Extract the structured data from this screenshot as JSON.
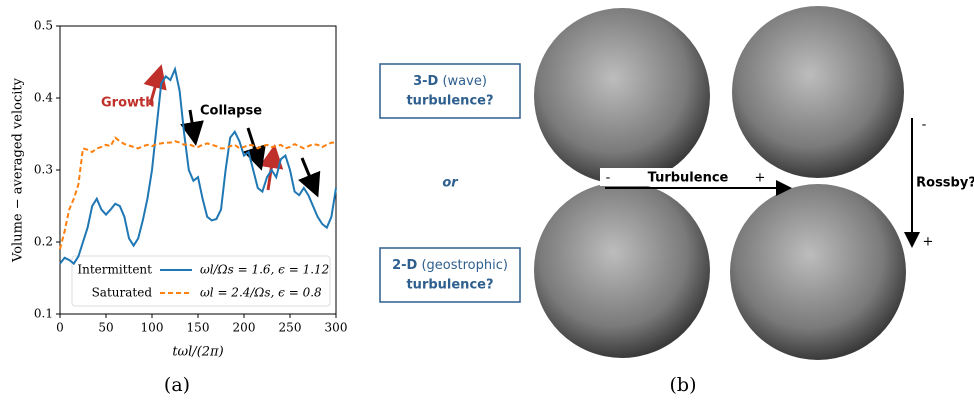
{
  "chart_data": {
    "type": "line",
    "x_label": "tωl/(2π)",
    "y_label": "Volume − averaged velocity",
    "x": [
      0,
      5,
      10,
      15,
      20,
      25,
      30,
      35,
      40,
      45,
      50,
      55,
      60,
      65,
      70,
      75,
      80,
      85,
      90,
      95,
      100,
      105,
      110,
      115,
      120,
      125,
      130,
      135,
      140,
      145,
      150,
      155,
      160,
      165,
      170,
      175,
      180,
      185,
      190,
      195,
      200,
      205,
      210,
      215,
      220,
      225,
      230,
      235,
      240,
      245,
      250,
      255,
      260,
      265,
      270,
      275,
      280,
      285,
      290,
      295,
      300
    ],
    "series": [
      {
        "name": "Intermittent",
        "label": "ωl/Ωs = 1.6, ϵ = 1.12",
        "color": "#1f77b4",
        "dash": "none",
        "values": [
          0.17,
          0.178,
          0.175,
          0.17,
          0.18,
          0.2,
          0.22,
          0.25,
          0.26,
          0.245,
          0.238,
          0.245,
          0.253,
          0.25,
          0.235,
          0.205,
          0.195,
          0.205,
          0.23,
          0.26,
          0.3,
          0.36,
          0.42,
          0.43,
          0.425,
          0.44,
          0.41,
          0.35,
          0.3,
          0.285,
          0.29,
          0.26,
          0.235,
          0.23,
          0.232,
          0.245,
          0.3,
          0.345,
          0.353,
          0.34,
          0.32,
          0.325,
          0.3,
          0.275,
          0.27,
          0.29,
          0.3,
          0.29,
          0.315,
          0.32,
          0.3,
          0.27,
          0.265,
          0.275,
          0.265,
          0.25,
          0.235,
          0.225,
          0.22,
          0.235,
          0.275
        ]
      },
      {
        "name": "Saturated",
        "label": "ωl = 2.4/Ωs, ϵ = 0.8",
        "color": "#ff7f0e",
        "dash": "5 3",
        "values": [
          0.19,
          0.215,
          0.245,
          0.26,
          0.28,
          0.33,
          0.328,
          0.325,
          0.33,
          0.332,
          0.335,
          0.333,
          0.345,
          0.34,
          0.336,
          0.334,
          0.332,
          0.33,
          0.333,
          0.335,
          0.333,
          0.336,
          0.337,
          0.338,
          0.338,
          0.34,
          0.338,
          0.335,
          0.336,
          0.333,
          0.332,
          0.335,
          0.337,
          0.335,
          0.333,
          0.33,
          0.33,
          0.333,
          0.335,
          0.33,
          0.332,
          0.335,
          0.334,
          0.33,
          0.333,
          0.335,
          0.332,
          0.333,
          0.335,
          0.33,
          0.332,
          0.336,
          0.333,
          0.33,
          0.333,
          0.336,
          0.335,
          0.332,
          0.335,
          0.338,
          0.338
        ]
      }
    ],
    "xlim": [
      0,
      300
    ],
    "ylim": [
      0.1,
      0.5
    ],
    "xticks": [
      0,
      50,
      100,
      150,
      200,
      250,
      300
    ],
    "yticks": [
      0.1,
      0.2,
      0.3,
      0.4,
      0.5
    ],
    "annotations": [
      "Growth",
      "Collapse"
    ]
  },
  "panel_b": {
    "box_top": {
      "bold": "3-D",
      "paren": "(wave)",
      "line2": "turbulence?"
    },
    "box_bottom": {
      "bold": "2-D",
      "paren": "(geostrophic)",
      "line2": "turbulence?"
    },
    "or": "or",
    "turbulence_axis": {
      "minus": "-",
      "label": "Turbulence",
      "plus": "+"
    },
    "rossby_axis": {
      "minus": "-",
      "label": "Rossby?",
      "plus": "+"
    }
  },
  "captions": [
    "(a)",
    "(b)"
  ]
}
